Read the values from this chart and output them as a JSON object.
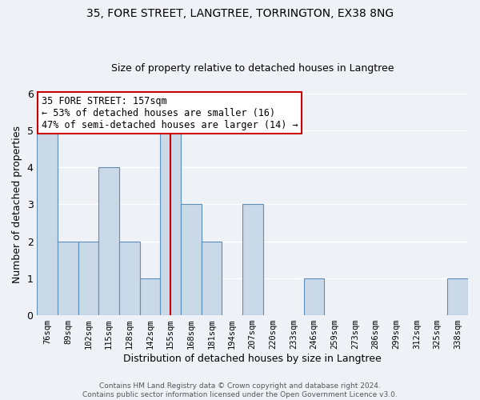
{
  "title": "35, FORE STREET, LANGTREE, TORRINGTON, EX38 8NG",
  "subtitle": "Size of property relative to detached houses in Langtree",
  "xlabel": "Distribution of detached houses by size in Langtree",
  "ylabel": "Number of detached properties",
  "categories": [
    "76sqm",
    "89sqm",
    "102sqm",
    "115sqm",
    "128sqm",
    "142sqm",
    "155sqm",
    "168sqm",
    "181sqm",
    "194sqm",
    "207sqm",
    "220sqm",
    "233sqm",
    "246sqm",
    "259sqm",
    "273sqm",
    "286sqm",
    "299sqm",
    "312sqm",
    "325sqm",
    "338sqm"
  ],
  "values": [
    5,
    2,
    2,
    4,
    2,
    1,
    5,
    3,
    2,
    0,
    3,
    0,
    0,
    1,
    0,
    0,
    0,
    0,
    0,
    0,
    1
  ],
  "bar_color": "#c9d9e8",
  "bar_edge_color": "#5b8db8",
  "highlight_index": 6,
  "highlight_line_color": "#cc0000",
  "ylim": [
    0,
    6
  ],
  "yticks": [
    0,
    1,
    2,
    3,
    4,
    5,
    6
  ],
  "annotation_text": "35 FORE STREET: 157sqm\n← 53% of detached houses are smaller (16)\n47% of semi-detached houses are larger (14) →",
  "annotation_box_color": "#ffffff",
  "annotation_box_edge_color": "#cc0000",
  "footer_text": "Contains HM Land Registry data © Crown copyright and database right 2024.\nContains public sector information licensed under the Open Government Licence v3.0.",
  "background_color": "#eef2f7",
  "grid_color": "#ffffff",
  "title_fontsize": 10,
  "subtitle_fontsize": 9,
  "ylabel_fontsize": 9,
  "xlabel_fontsize": 9
}
